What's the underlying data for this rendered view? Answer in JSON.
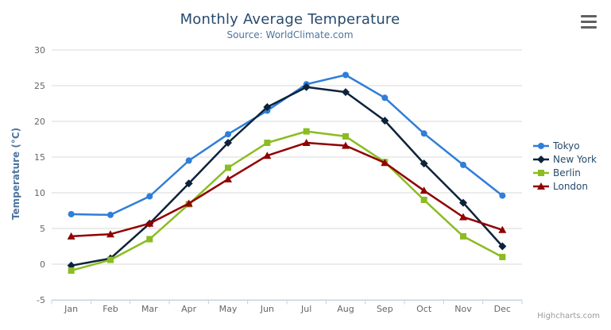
{
  "chart": {
    "credits_label": "Highcharts.com",
    "menu_icon": "hamburger-icon",
    "background_color": "#ffffff"
  },
  "colors": {
    "title": "#274b6d",
    "subtitle": "#4d759e",
    "axis_title": "#4d759e",
    "axis_labels": "#666666",
    "gridline": "#d8d8d8",
    "axis_line": "#c0d0e0",
    "legend_text": "#274b6d",
    "credits": "#999999",
    "menu": "#616161"
  },
  "chart_data": {
    "type": "line",
    "title": "Monthly Average Temperature",
    "subtitle": "Source: WorldClimate.com",
    "xlabel": "",
    "ylabel": "Temperature (°C)",
    "ylim": [
      -5,
      30
    ],
    "ytick_step": 5,
    "grid": true,
    "legend_position": "right",
    "categories": [
      "Jan",
      "Feb",
      "Mar",
      "Apr",
      "May",
      "Jun",
      "Jul",
      "Aug",
      "Sep",
      "Oct",
      "Nov",
      "Dec"
    ],
    "series": [
      {
        "name": "Tokyo",
        "color": "#2f7ed8",
        "marker": "circle",
        "values": [
          7.0,
          6.9,
          9.5,
          14.5,
          18.2,
          21.5,
          25.2,
          26.5,
          23.3,
          18.3,
          13.9,
          9.6
        ]
      },
      {
        "name": "New York",
        "color": "#0d233a",
        "marker": "diamond",
        "values": [
          -0.2,
          0.8,
          5.7,
          11.3,
          17.0,
          22.0,
          24.8,
          24.1,
          20.1,
          14.1,
          8.6,
          2.5
        ]
      },
      {
        "name": "Berlin",
        "color": "#8bbc21",
        "marker": "square",
        "values": [
          -0.9,
          0.6,
          3.5,
          8.4,
          13.5,
          17.0,
          18.6,
          17.9,
          14.3,
          9.0,
          3.9,
          1.0
        ]
      },
      {
        "name": "London",
        "color": "#910000",
        "marker": "triangle",
        "values": [
          3.9,
          4.2,
          5.7,
          8.5,
          11.9,
          15.2,
          17.0,
          16.6,
          14.2,
          10.3,
          6.6,
          4.8
        ]
      }
    ]
  }
}
